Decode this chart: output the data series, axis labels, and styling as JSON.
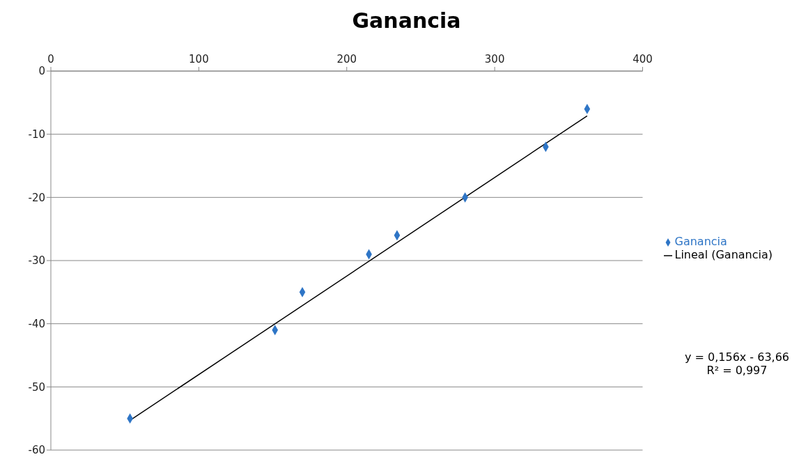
{
  "chart_data": {
    "type": "scatter",
    "title": "Ganancia",
    "xlim": [
      0,
      400
    ],
    "xticks": [
      0,
      100,
      200,
      300,
      400
    ],
    "ylim": [
      -60,
      0
    ],
    "yticks": [
      0,
      -10,
      -20,
      -30,
      -40,
      -50,
      -60
    ],
    "grid": "y",
    "legend": "right",
    "marker": "diamond",
    "series": [
      {
        "name": "Ganancia",
        "color": "#2e75c6",
        "x": [
          53.5,
          151.5,
          170,
          215,
          234,
          280,
          334.5,
          362.5
        ],
        "values": [
          -55,
          -41,
          -35,
          -29,
          -26,
          -20,
          -12,
          -6
        ]
      },
      {
        "name": "Lineal (Ganancia)",
        "type": "line",
        "color": "#000000",
        "marker": "none",
        "line_style": "solid",
        "x": [
          53.5,
          362.5
        ],
        "values": [
          -55.3,
          -7.1
        ]
      }
    ],
    "annotations": [
      "y = 0,156x - 63,66",
      "R² = 0,997"
    ]
  }
}
